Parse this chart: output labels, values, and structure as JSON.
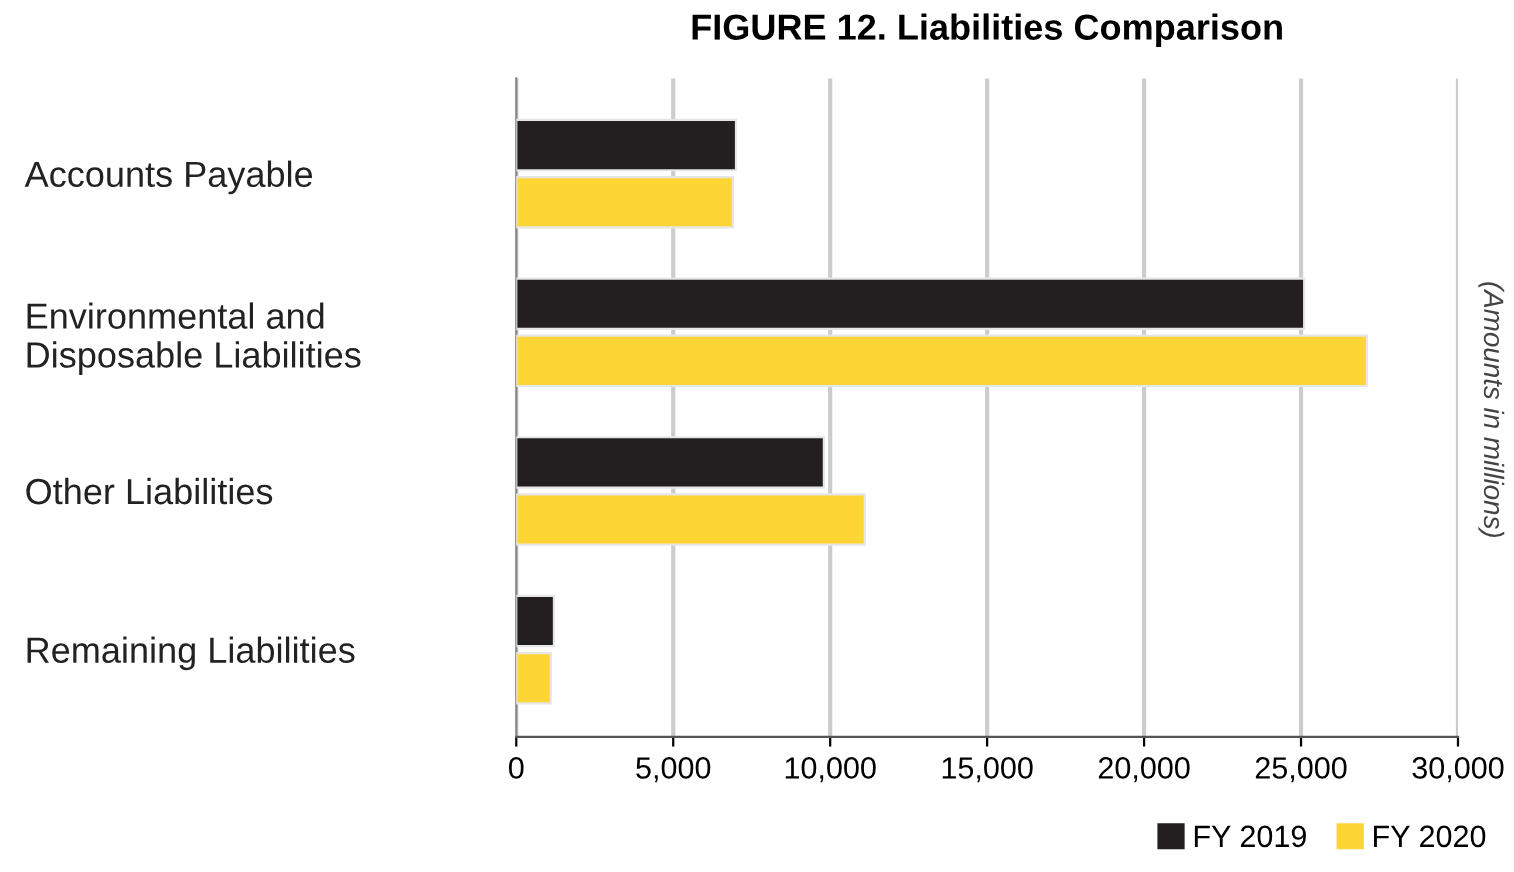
{
  "chart_data": {
    "type": "bar",
    "orientation": "horizontal",
    "title": "FIGURE 12. Liabilities Comparison",
    "categories": [
      "Accounts Payable",
      "Environmental and\nDisposable Liabilities",
      "Other Liabilities",
      "Remaining Liabilities"
    ],
    "series": [
      {
        "name": "FY 2019",
        "color": "#231f20",
        "values": [
          7000,
          25100,
          9800,
          1200
        ]
      },
      {
        "name": "FY 2020",
        "color": "#fdd535",
        "values": [
          6900,
          27100,
          11100,
          1100
        ]
      }
    ],
    "xlim": [
      0,
      30000
    ],
    "xticks": [
      {
        "value": 0,
        "label": "0"
      },
      {
        "value": 5000,
        "label": "5,000"
      },
      {
        "value": 10000,
        "label": "10,000"
      },
      {
        "value": 15000,
        "label": "15,000"
      },
      {
        "value": 20000,
        "label": "20,000"
      },
      {
        "value": 25000,
        "label": "25,000"
      },
      {
        "value": 30000,
        "label": "30,000"
      }
    ],
    "annotations": [
      "(Amounts in millions)"
    ],
    "grid": "x",
    "legend": "bottom right"
  }
}
